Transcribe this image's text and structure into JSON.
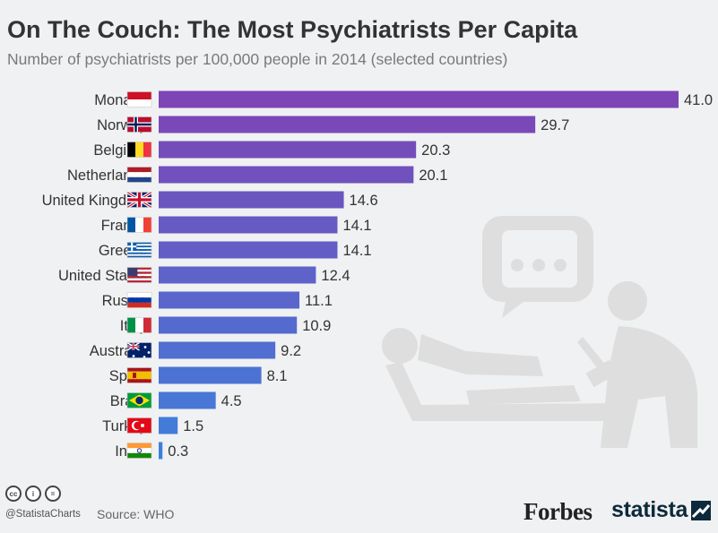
{
  "header": {
    "title": "On The Couch: The Most Psychiatrists Per Capita",
    "subtitle": "Number of psychiatrists per 100,000 people in 2014 (selected countries)"
  },
  "chart_data": {
    "type": "bar",
    "orientation": "horizontal",
    "categories": [
      "Monaco",
      "Norway",
      "Belgium",
      "Netherlands",
      "United Kingdom",
      "France",
      "Greece",
      "United States",
      "Russia",
      "Italy",
      "Australia",
      "Spain",
      "Brazil",
      "Turkey",
      "India"
    ],
    "values": [
      41.0,
      29.7,
      20.3,
      20.1,
      14.6,
      14.1,
      14.1,
      12.4,
      11.1,
      10.9,
      9.2,
      8.1,
      4.5,
      1.5,
      0.3
    ],
    "value_labels": [
      "41.0",
      "29.7",
      "20.3",
      "20.1",
      "14.6",
      "14.1",
      "14.1",
      "12.4",
      "11.1",
      "10.9",
      "9.2",
      "8.1",
      "4.5",
      "1.5",
      "0.3"
    ],
    "xlim": [
      0,
      41
    ],
    "grid": false,
    "legend": "none",
    "colors": {
      "bar_top": "#7d45b5",
      "bar_bottom": "#3f7fdc",
      "label_text": "#333333",
      "illustration": "#dedede"
    },
    "flags": [
      "monaco-flag",
      "norway-flag",
      "belgium-flag",
      "netherlands-flag",
      "united-kingdom-flag",
      "france-flag",
      "greece-flag",
      "united-states-flag",
      "russia-flag",
      "italy-flag",
      "australia-flag",
      "spain-flag",
      "brazil-flag",
      "turkey-flag",
      "india-flag"
    ]
  },
  "footer": {
    "license_icons": [
      "cc-icon",
      "attribution-icon",
      "no-derivatives-icon"
    ],
    "license_glyphs": [
      "cc",
      "i",
      "="
    ],
    "handle": "@StatistaCharts",
    "source": "Source: WHO",
    "forbes_logo": "Forbes",
    "statista_logo": "statista"
  }
}
